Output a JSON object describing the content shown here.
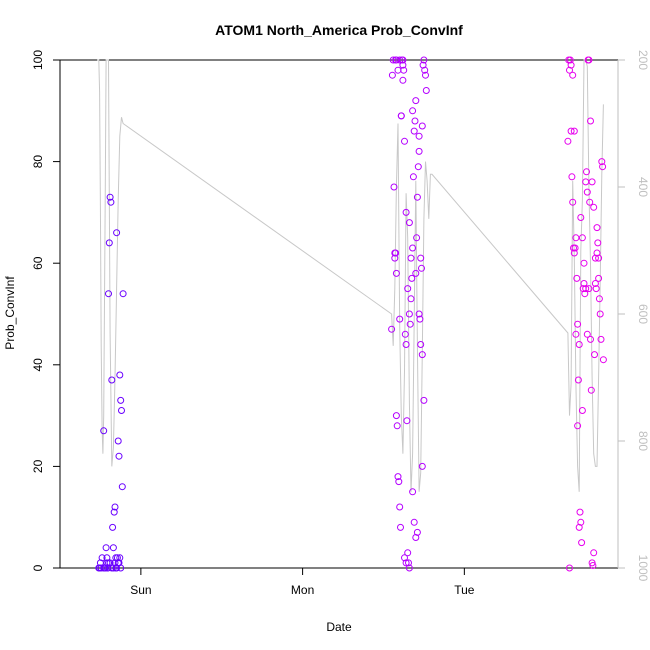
{
  "chart_data": {
    "type": "scatter",
    "title": "ATOM1 North_America Prob_ConvInf",
    "xlabel": "Date",
    "ylabel": "Prob_ConvInf",
    "x_ticks": [
      {
        "label": "Sun",
        "day": 1.0
      },
      {
        "label": "Mon",
        "day": 2.0
      },
      {
        "label": "Tue",
        "day": 3.0
      }
    ],
    "xlim_days": [
      0.5,
      3.95
    ],
    "ylim": [
      0,
      100
    ],
    "y_ticks": [
      0,
      20,
      40,
      60,
      80,
      100
    ],
    "y2_ticks": [
      200,
      400,
      600,
      800,
      1000
    ],
    "y2lim": [
      1000,
      200
    ],
    "grid": false,
    "colors": {
      "axis": "#000000",
      "secondary_axis": "#bfbfbf",
      "line": "#c8c8c8",
      "points_day1": "#6a00ff",
      "points_day2": "#b400ff",
      "points_day3": "#e600ee"
    },
    "series": [
      {
        "kind": "points",
        "color_key": "points_day1",
        "x": [
          0.74,
          0.745,
          0.75,
          0.755,
          0.76,
          0.77,
          0.775,
          0.78,
          0.785,
          0.79,
          0.795,
          0.8,
          0.805,
          0.81,
          0.815,
          0.82,
          0.825,
          0.83,
          0.835,
          0.84,
          0.845,
          0.85,
          0.855,
          0.86,
          0.865,
          0.87,
          0.875,
          0.88,
          0.885,
          0.89,
          0.77,
          0.79,
          0.795,
          0.8,
          0.81,
          0.82,
          0.83,
          0.84,
          0.845,
          0.85,
          0.86,
          0.865,
          0.87,
          0.875
        ],
        "y": [
          0,
          0,
          1,
          0,
          2,
          27,
          0,
          0,
          4,
          1,
          0,
          54,
          64,
          73,
          72,
          37,
          8,
          0,
          11,
          12,
          0,
          66,
          2,
          25,
          22,
          38,
          33,
          31,
          16,
          54,
          0,
          2,
          0,
          1,
          1,
          0,
          4,
          1,
          2,
          0,
          1,
          1,
          2,
          0
        ]
      },
      {
        "kind": "points",
        "color_key": "points_day2",
        "x": [
          2.55,
          2.555,
          2.56,
          2.565,
          2.57,
          2.575,
          2.58,
          2.585,
          2.59,
          2.595,
          2.6,
          2.605,
          2.61,
          2.615,
          2.62,
          2.625,
          2.63,
          2.635,
          2.64,
          2.645,
          2.65,
          2.655,
          2.66,
          2.665,
          2.67,
          2.675,
          2.68,
          2.685,
          2.69,
          2.695,
          2.7,
          2.705,
          2.71,
          2.715,
          2.72,
          2.725,
          2.73,
          2.735,
          2.74,
          2.745,
          2.75,
          2.755,
          2.76,
          2.765,
          2.57,
          2.575,
          2.58,
          2.59,
          2.6,
          2.61,
          2.62,
          2.63,
          2.64,
          2.65,
          2.66,
          2.67,
          2.68,
          2.69,
          2.7,
          2.71,
          2.72,
          2.73,
          2.74,
          2.75,
          2.58,
          2.6,
          2.62,
          2.64,
          2.66,
          2.68,
          2.7,
          2.72,
          2.74
        ],
        "y": [
          47,
          97,
          100,
          75,
          61,
          62,
          58,
          28,
          18,
          17,
          12,
          8,
          89,
          100,
          99,
          98,
          84,
          46,
          44,
          29,
          3,
          1,
          0,
          48,
          53,
          57,
          63,
          77,
          86,
          88,
          58,
          65,
          73,
          79,
          82,
          49,
          61,
          59,
          87,
          99,
          100,
          98,
          97,
          94,
          62,
          100,
          100,
          98,
          100,
          89,
          96,
          2,
          1,
          55,
          68,
          61,
          15,
          9,
          6,
          7,
          50,
          44,
          42,
          33,
          30,
          49,
          100,
          70,
          50,
          90,
          92,
          85,
          20
        ]
      },
      {
        "kind": "points",
        "color_key": "points_day3",
        "x": [
          3.64,
          3.645,
          3.65,
          3.655,
          3.66,
          3.665,
          3.67,
          3.675,
          3.68,
          3.685,
          3.69,
          3.695,
          3.7,
          3.705,
          3.71,
          3.715,
          3.72,
          3.725,
          3.73,
          3.735,
          3.74,
          3.745,
          3.75,
          3.755,
          3.76,
          3.765,
          3.77,
          3.775,
          3.78,
          3.785,
          3.79,
          3.795,
          3.8,
          3.805,
          3.81,
          3.815,
          3.82,
          3.825,
          3.83,
          3.835,
          3.84,
          3.845,
          3.85,
          3.855,
          3.86,
          3.65,
          3.66,
          3.67,
          3.68,
          3.69,
          3.7,
          3.71,
          3.72,
          3.73,
          3.74,
          3.75,
          3.76,
          3.77,
          3.78,
          3.79,
          3.8,
          3.81,
          3.82,
          3.83
        ],
        "y": [
          84,
          100,
          98,
          100,
          86,
          77,
          72,
          63,
          62,
          63,
          65,
          57,
          48,
          37,
          44,
          11,
          9,
          5,
          31,
          55,
          56,
          54,
          76,
          78,
          46,
          100,
          100,
          72,
          45,
          35,
          1,
          0.5,
          3,
          42,
          56,
          55,
          62,
          64,
          61,
          53,
          50,
          45,
          80,
          79,
          41,
          0,
          99,
          97,
          86,
          46,
          28,
          8,
          69,
          65,
          60,
          55,
          74,
          55,
          88,
          76,
          71,
          61,
          67,
          57
        ]
      },
      {
        "kind": "line",
        "color_key": "line",
        "axis": "secondary",
        "x": [
          0.73,
          0.74,
          0.745,
          0.75,
          0.755,
          0.76,
          0.765,
          0.77,
          0.775,
          0.78,
          0.785,
          0.79,
          0.8,
          0.81,
          0.82,
          0.83,
          0.84,
          0.85,
          0.86,
          0.87,
          0.88,
          0.89,
          2.55,
          2.56,
          2.57,
          2.58,
          2.59,
          2.6,
          2.61,
          2.62,
          2.63,
          2.64,
          2.65,
          2.66,
          2.67,
          2.68,
          2.69,
          2.7,
          2.71,
          2.72,
          2.73,
          2.74,
          2.75,
          2.76,
          2.77,
          2.78,
          2.79,
          2.8,
          3.64,
          3.65,
          3.66,
          3.67,
          3.68,
          3.69,
          3.7,
          3.71,
          3.72,
          3.73,
          3.74,
          3.75,
          3.76,
          3.77,
          3.78,
          3.79,
          3.8,
          3.81,
          3.82,
          3.83,
          3.84,
          3.85,
          3.86
        ],
        "y": [
          150,
          120,
          250,
          430,
          650,
          780,
          820,
          760,
          580,
          400,
          150,
          150,
          150,
          630,
          840,
          810,
          700,
          560,
          420,
          320,
          290,
          300,
          600,
          650,
          560,
          400,
          300,
          620,
          760,
          820,
          690,
          410,
          480,
          740,
          880,
          820,
          610,
          390,
          650,
          880,
          850,
          660,
          450,
          360,
          390,
          450,
          380,
          380,
          630,
          760,
          710,
          390,
          510,
          710,
          840,
          880,
          500,
          420,
          200,
          150,
          210,
          400,
          520,
          700,
          820,
          840,
          840,
          700,
          550,
          380,
          270
        ]
      }
    ]
  }
}
